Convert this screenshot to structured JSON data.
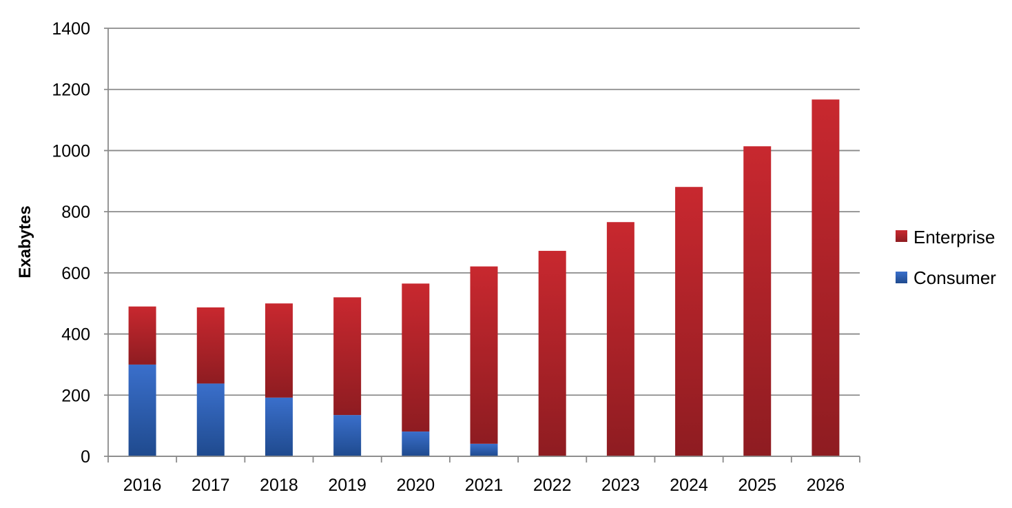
{
  "chart_data": {
    "type": "bar",
    "stacked": true,
    "title": "",
    "xlabel": "",
    "ylabel": "Exabytes",
    "ylim": [
      0,
      1400
    ],
    "yticks": [
      0,
      200,
      400,
      600,
      800,
      1000,
      1200,
      1400
    ],
    "grid": true,
    "legend_position": "right",
    "categories": [
      "2016",
      "2017",
      "2018",
      "2019",
      "2020",
      "2021",
      "2022",
      "2023",
      "2024",
      "2025",
      "2026"
    ],
    "series": [
      {
        "name": "Consumer",
        "color": "#2f63b8",
        "values": [
          300,
          238,
          192,
          135,
          81,
          41,
          0,
          0,
          0,
          0,
          0
        ]
      },
      {
        "name": "Enterprise",
        "color": "#b8242a",
        "values": [
          190,
          249,
          308,
          385,
          484,
          580,
          672,
          766,
          881,
          1014,
          1167
        ]
      }
    ],
    "legend": [
      "Enterprise",
      "Consumer"
    ]
  }
}
